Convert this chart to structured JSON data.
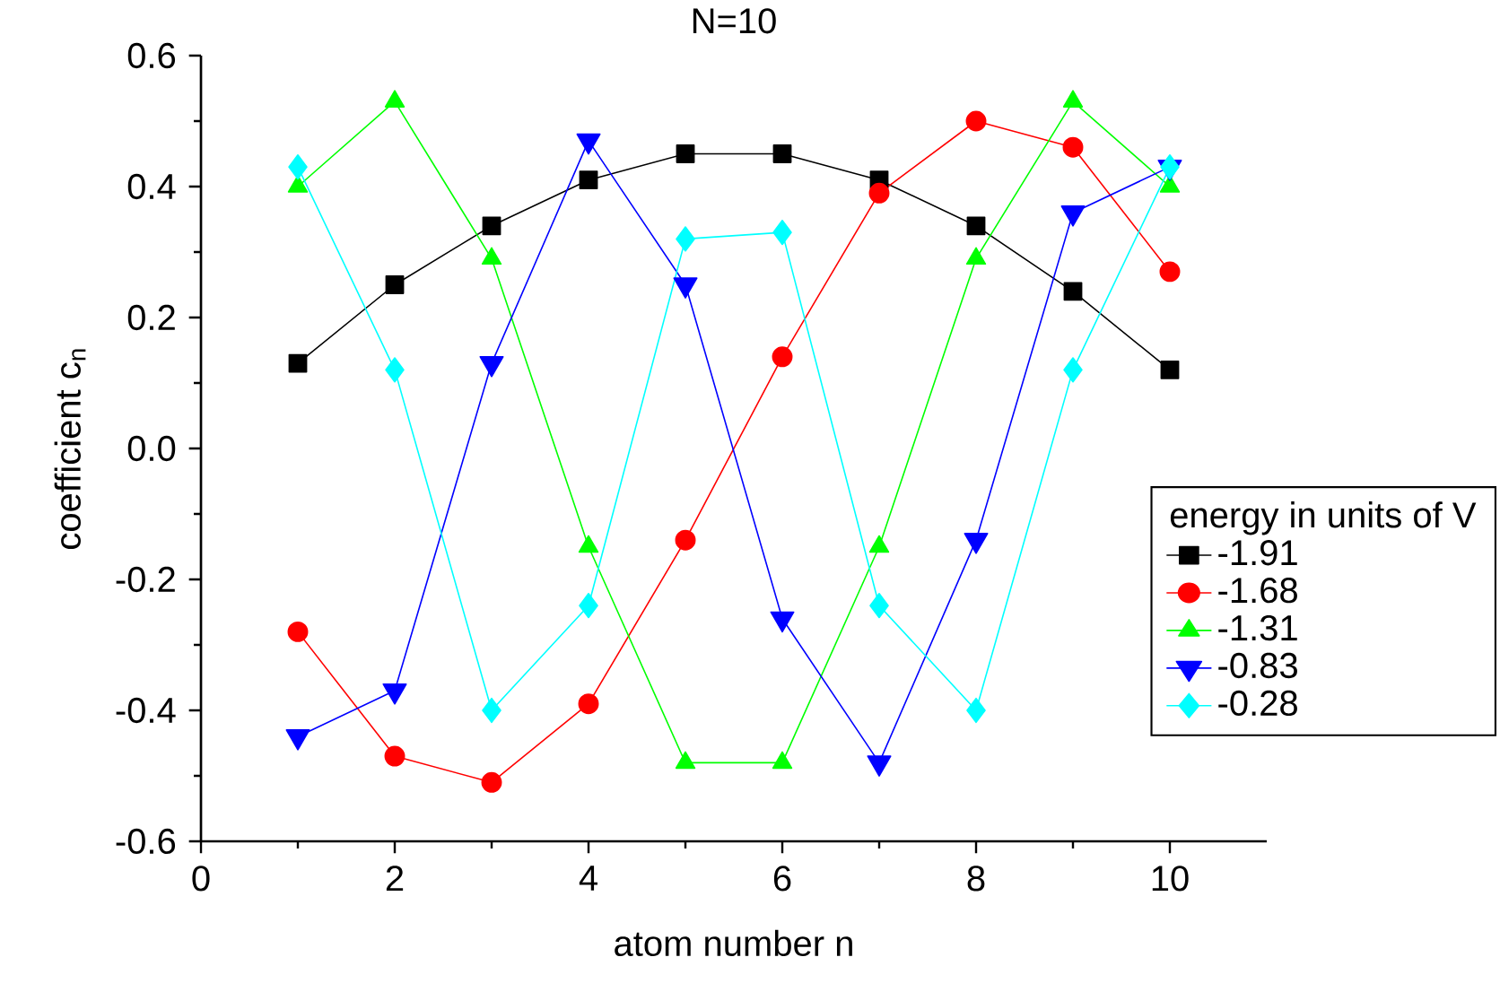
{
  "chart_data": {
    "type": "line",
    "title": "N=10",
    "xlabel": "atom number n",
    "ylabel": "coefficient c$_{n}$",
    "legend_title": "energy in units of V",
    "legend": "right",
    "x": [
      1,
      2,
      3,
      4,
      5,
      6,
      7,
      8,
      9,
      10
    ],
    "series": [
      {
        "name": "-1.91",
        "color": "#000000",
        "marker": "square",
        "values": [
          0.13,
          0.25,
          0.34,
          0.41,
          0.45,
          0.45,
          0.41,
          0.34,
          0.24,
          0.12
        ]
      },
      {
        "name": "-1.68",
        "color": "#ff0000",
        "marker": "circle",
        "values": [
          -0.28,
          -0.47,
          -0.51,
          -0.39,
          -0.14,
          0.14,
          0.39,
          0.5,
          0.46,
          0.27
        ]
      },
      {
        "name": "-1.31",
        "color": "#00ff00",
        "marker": "triangle",
        "values": [
          0.4,
          0.53,
          0.29,
          -0.15,
          -0.48,
          -0.48,
          -0.15,
          0.29,
          0.53,
          0.4
        ]
      },
      {
        "name": "-0.83",
        "color": "#0000ff",
        "marker": "triangle-down",
        "values": [
          -0.44,
          -0.37,
          0.13,
          0.47,
          0.25,
          -0.26,
          -0.48,
          -0.14,
          0.36,
          0.43
        ]
      },
      {
        "name": "-0.28",
        "color": "#00ffff",
        "marker": "diamond",
        "values": [
          0.43,
          0.12,
          -0.4,
          -0.24,
          0.32,
          0.33,
          -0.24,
          -0.4,
          0.12,
          0.43
        ]
      }
    ],
    "xlim": [
      0,
      11
    ],
    "ylim": [
      -0.6,
      0.6
    ],
    "xticks": [
      0,
      2,
      4,
      6,
      8,
      10
    ],
    "yticks": [
      {
        "value": -0.6,
        "label": "-0.6"
      },
      {
        "value": -0.4,
        "label": "-0.4"
      },
      {
        "value": -0.2,
        "label": "-0.2"
      },
      {
        "value": 0,
        "label": "0.0"
      },
      {
        "value": 0.2,
        "label": "0.2"
      },
      {
        "value": 0.4,
        "label": "0.4"
      },
      {
        "value": 0.6,
        "label": "0.6"
      }
    ],
    "grid": false,
    "line_style": "solid"
  }
}
